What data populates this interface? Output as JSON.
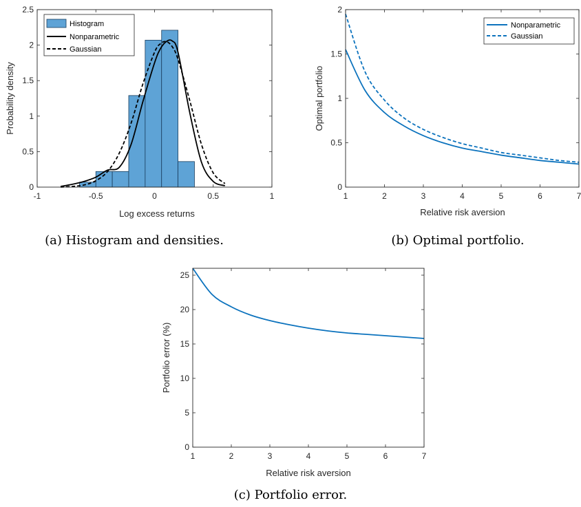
{
  "colors": {
    "histogram_fill": "#5ea3d6",
    "histogram_edge": "#1a3d5c",
    "density_line": "#000000",
    "portfolio_line": "#0b72bd",
    "axis": "#262626"
  },
  "chart_data": [
    {
      "type": "bar",
      "xlabel": "Log excess returns",
      "ylabel": "Probability density",
      "xlim": [
        -1,
        1
      ],
      "ylim": [
        0,
        2.5
      ],
      "xticks": [
        "-1",
        "-0.5",
        "0",
        "0.5",
        "1"
      ],
      "yticks": [
        "0",
        "0.5",
        "1",
        "1.5",
        "2",
        "2.5"
      ],
      "legend_position": "top-left",
      "caption": "(a) Histogram and densities.",
      "histogram": {
        "name": "Histogram",
        "bin_edges": [
          -0.64,
          -0.5,
          -0.36,
          -0.22,
          -0.08,
          0.06,
          0.2,
          0.34,
          0.48
        ],
        "values": [
          0.07,
          0.22,
          0.22,
          1.29,
          2.07,
          2.21,
          0.36,
          0.0
        ]
      },
      "series": [
        {
          "name": "Nonparametric",
          "style": "solid",
          "x": [
            -0.8,
            -0.7,
            -0.6,
            -0.5,
            -0.4,
            -0.3,
            -0.2,
            -0.1,
            0.0,
            0.05,
            0.1,
            0.15,
            0.2,
            0.3,
            0.4,
            0.5,
            0.6
          ],
          "y": [
            0.01,
            0.04,
            0.08,
            0.14,
            0.24,
            0.28,
            0.6,
            1.2,
            1.75,
            1.95,
            2.05,
            2.06,
            1.9,
            1.05,
            0.35,
            0.08,
            0.02
          ]
        },
        {
          "name": "Gaussian",
          "style": "dashed",
          "x": [
            -0.8,
            -0.7,
            -0.6,
            -0.5,
            -0.4,
            -0.3,
            -0.2,
            -0.1,
            0.0,
            0.05,
            0.1,
            0.15,
            0.2,
            0.3,
            0.4,
            0.5,
            0.6
          ],
          "y": [
            0.0,
            0.01,
            0.03,
            0.09,
            0.22,
            0.48,
            0.9,
            1.45,
            1.9,
            2.02,
            2.05,
            1.98,
            1.8,
            1.22,
            0.6,
            0.2,
            0.05
          ]
        }
      ]
    },
    {
      "type": "line",
      "xlabel": "Relative risk aversion",
      "ylabel": "Optimal portfolio",
      "xlim": [
        1,
        7
      ],
      "ylim": [
        0,
        2
      ],
      "xticks": [
        "1",
        "2",
        "3",
        "4",
        "5",
        "6",
        "7"
      ],
      "yticks": [
        "0",
        "0.5",
        "1",
        "1.5",
        "2"
      ],
      "legend_position": "top-right",
      "caption": "(b) Optimal portfolio.",
      "series": [
        {
          "name": "Nonparametric",
          "style": "solid",
          "x": [
            1,
            1.5,
            2,
            2.5,
            3,
            3.5,
            4,
            4.5,
            5,
            5.5,
            6,
            6.5,
            7
          ],
          "y": [
            1.55,
            1.09,
            0.84,
            0.69,
            0.58,
            0.5,
            0.44,
            0.4,
            0.36,
            0.33,
            0.3,
            0.28,
            0.26
          ]
        },
        {
          "name": "Gaussian",
          "style": "dashed",
          "x": [
            1,
            1.5,
            2,
            2.5,
            3,
            3.5,
            4,
            4.5,
            5,
            5.5,
            6,
            6.5,
            7
          ],
          "y": [
            1.95,
            1.3,
            0.98,
            0.78,
            0.65,
            0.56,
            0.49,
            0.44,
            0.39,
            0.36,
            0.33,
            0.3,
            0.28
          ]
        }
      ]
    },
    {
      "type": "line",
      "xlabel": "Relative risk aversion",
      "ylabel": "Portfolio error (%)",
      "xlim": [
        1,
        7
      ],
      "ylim": [
        0,
        26
      ],
      "xticks": [
        "1",
        "2",
        "3",
        "4",
        "5",
        "6",
        "7"
      ],
      "yticks": [
        "0",
        "5",
        "10",
        "15",
        "20",
        "25"
      ],
      "caption": "(c) Portfolio error.",
      "series": [
        {
          "style": "solid",
          "x": [
            1,
            1.5,
            2,
            2.5,
            3,
            3.5,
            4,
            4.5,
            5,
            5.5,
            6,
            6.5,
            7
          ],
          "y": [
            26.0,
            22.2,
            20.4,
            19.2,
            18.4,
            17.8,
            17.3,
            16.9,
            16.6,
            16.4,
            16.2,
            16.0,
            15.8
          ]
        }
      ]
    }
  ]
}
